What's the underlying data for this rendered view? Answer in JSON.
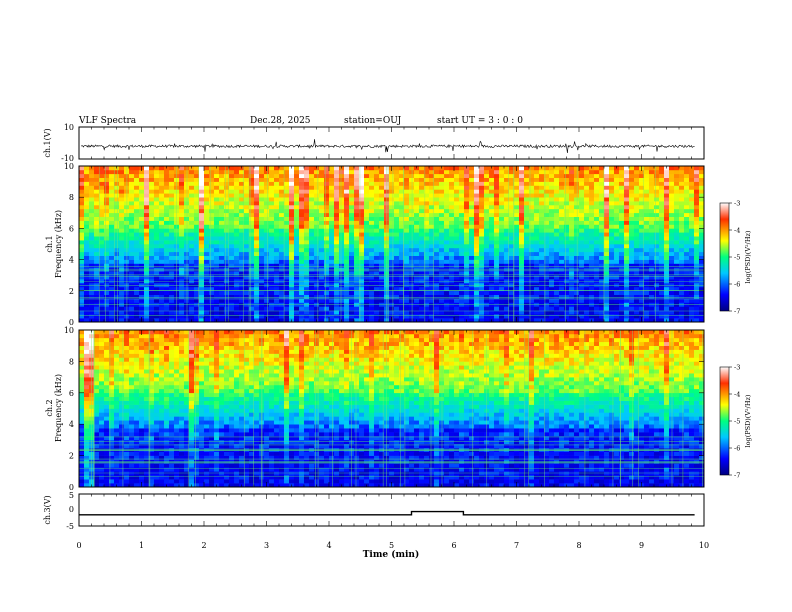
{
  "header": {
    "title": "VLF Spectra",
    "date": "Dec.28, 2025",
    "station": "station=OUJ",
    "start_ut": "start UT =  3 : 0 : 0"
  },
  "chart_data": [
    {
      "type": "line",
      "panel": "ch1_waveform",
      "ylabel": "ch.1(V)",
      "ylim": [
        -10,
        10
      ],
      "y_ticks": [
        "10",
        "-10"
      ],
      "x_range": [
        0,
        10
      ],
      "baseline_value": -2,
      "series": [
        {
          "values": []
        }
      ]
    },
    {
      "type": "heatmap",
      "panel": "ch1_spectrogram",
      "ylabel": [
        "ch.1",
        "Frequency (kHz)"
      ],
      "ylim": [
        0,
        10
      ],
      "y_ticks": [
        "0",
        "2",
        "4",
        "6",
        "8",
        "10"
      ],
      "x_range": [
        0,
        10
      ],
      "z_range": [
        -7,
        -3
      ],
      "colorbar": {
        "label": "log(PSD)(V²/Hz)",
        "ticks": [
          "-3",
          "-4",
          "-5",
          "-6",
          "-7"
        ]
      }
    },
    {
      "type": "heatmap",
      "panel": "ch2_spectrogram",
      "ylabel": [
        "ch.2",
        "Frequency (kHz)"
      ],
      "ylim": [
        0,
        10
      ],
      "y_ticks": [
        "0",
        "2",
        "4",
        "6",
        "8",
        "10"
      ],
      "x_range": [
        0,
        10
      ],
      "z_range": [
        -7,
        -3
      ],
      "colorbar": {
        "label": "log(PSD)(V²/Hz)",
        "ticks": [
          "-3",
          "-4",
          "-5",
          "-6",
          "-7"
        ]
      }
    },
    {
      "type": "line",
      "panel": "ch3_signal",
      "ylabel": "ch.3(V)",
      "ylim": [
        -5,
        5
      ],
      "y_ticks": [
        "5",
        "0",
        "-5"
      ],
      "x_range": [
        0,
        10
      ],
      "series": [
        {
          "x": [
            0,
            5.32,
            5.32,
            6.15,
            6.15,
            9.85
          ],
          "values": [
            -1.5,
            -1.5,
            -0.5,
            -0.5,
            -1.5,
            -1.5
          ]
        }
      ]
    }
  ],
  "x_axis": {
    "label": "Time (min)",
    "ticks": [
      "0",
      "1",
      "2",
      "3",
      "4",
      "5",
      "6",
      "7",
      "8",
      "9",
      "10"
    ]
  },
  "colorscale": [
    "#000080",
    "#0000ff",
    "#00c8ff",
    "#00ff80",
    "#ffff00",
    "#ff3000",
    "#ffffff"
  ]
}
